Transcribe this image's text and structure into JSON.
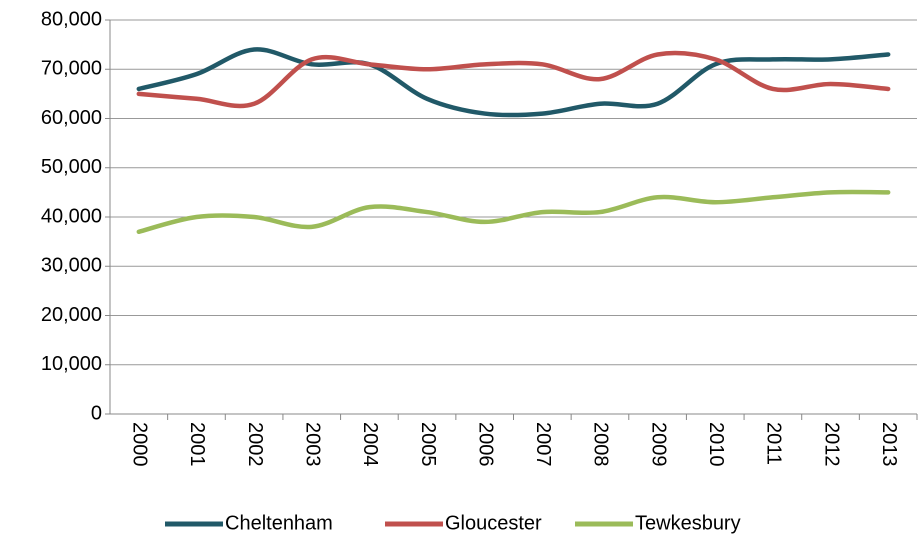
{
  "chart_data": {
    "type": "line",
    "categories": [
      "2000",
      "2001",
      "2002",
      "2003",
      "2004",
      "2005",
      "2006",
      "2007",
      "2008",
      "2009",
      "2010",
      "2011",
      "2012",
      "2013"
    ],
    "series": [
      {
        "name": "Cheltenham",
        "color": "#215968",
        "values": [
          66000,
          69000,
          74000,
          71000,
          71000,
          64000,
          61000,
          61000,
          63000,
          63000,
          71000,
          72000,
          72000,
          73000
        ]
      },
      {
        "name": "Gloucester",
        "color": "#c0504d",
        "values": [
          65000,
          64000,
          63000,
          72000,
          71000,
          70000,
          71000,
          71000,
          68000,
          73000,
          72000,
          66000,
          67000,
          66000
        ]
      },
      {
        "name": "Tewkesbury",
        "color": "#9bbb59",
        "values": [
          37000,
          40000,
          40000,
          38000,
          42000,
          41000,
          39000,
          41000,
          41000,
          44000,
          43000,
          44000,
          45000,
          45000
        ]
      }
    ],
    "ylim": [
      0,
      80000
    ],
    "yticks": [
      0,
      {
        "value": 10000,
        "label": "10,000"
      },
      {
        "value": 20000,
        "label": "20,000"
      },
      {
        "value": 30000,
        "label": "30,000"
      },
      {
        "value": 40000,
        "label": "40,000"
      },
      {
        "value": 50000,
        "label": "50,000"
      },
      {
        "value": 60000,
        "label": "60,000"
      },
      {
        "value": 70000,
        "label": "70,000"
      },
      {
        "value": 80000,
        "label": "80,000"
      }
    ],
    "grid": true,
    "smooth": true,
    "legend": "bottom"
  }
}
